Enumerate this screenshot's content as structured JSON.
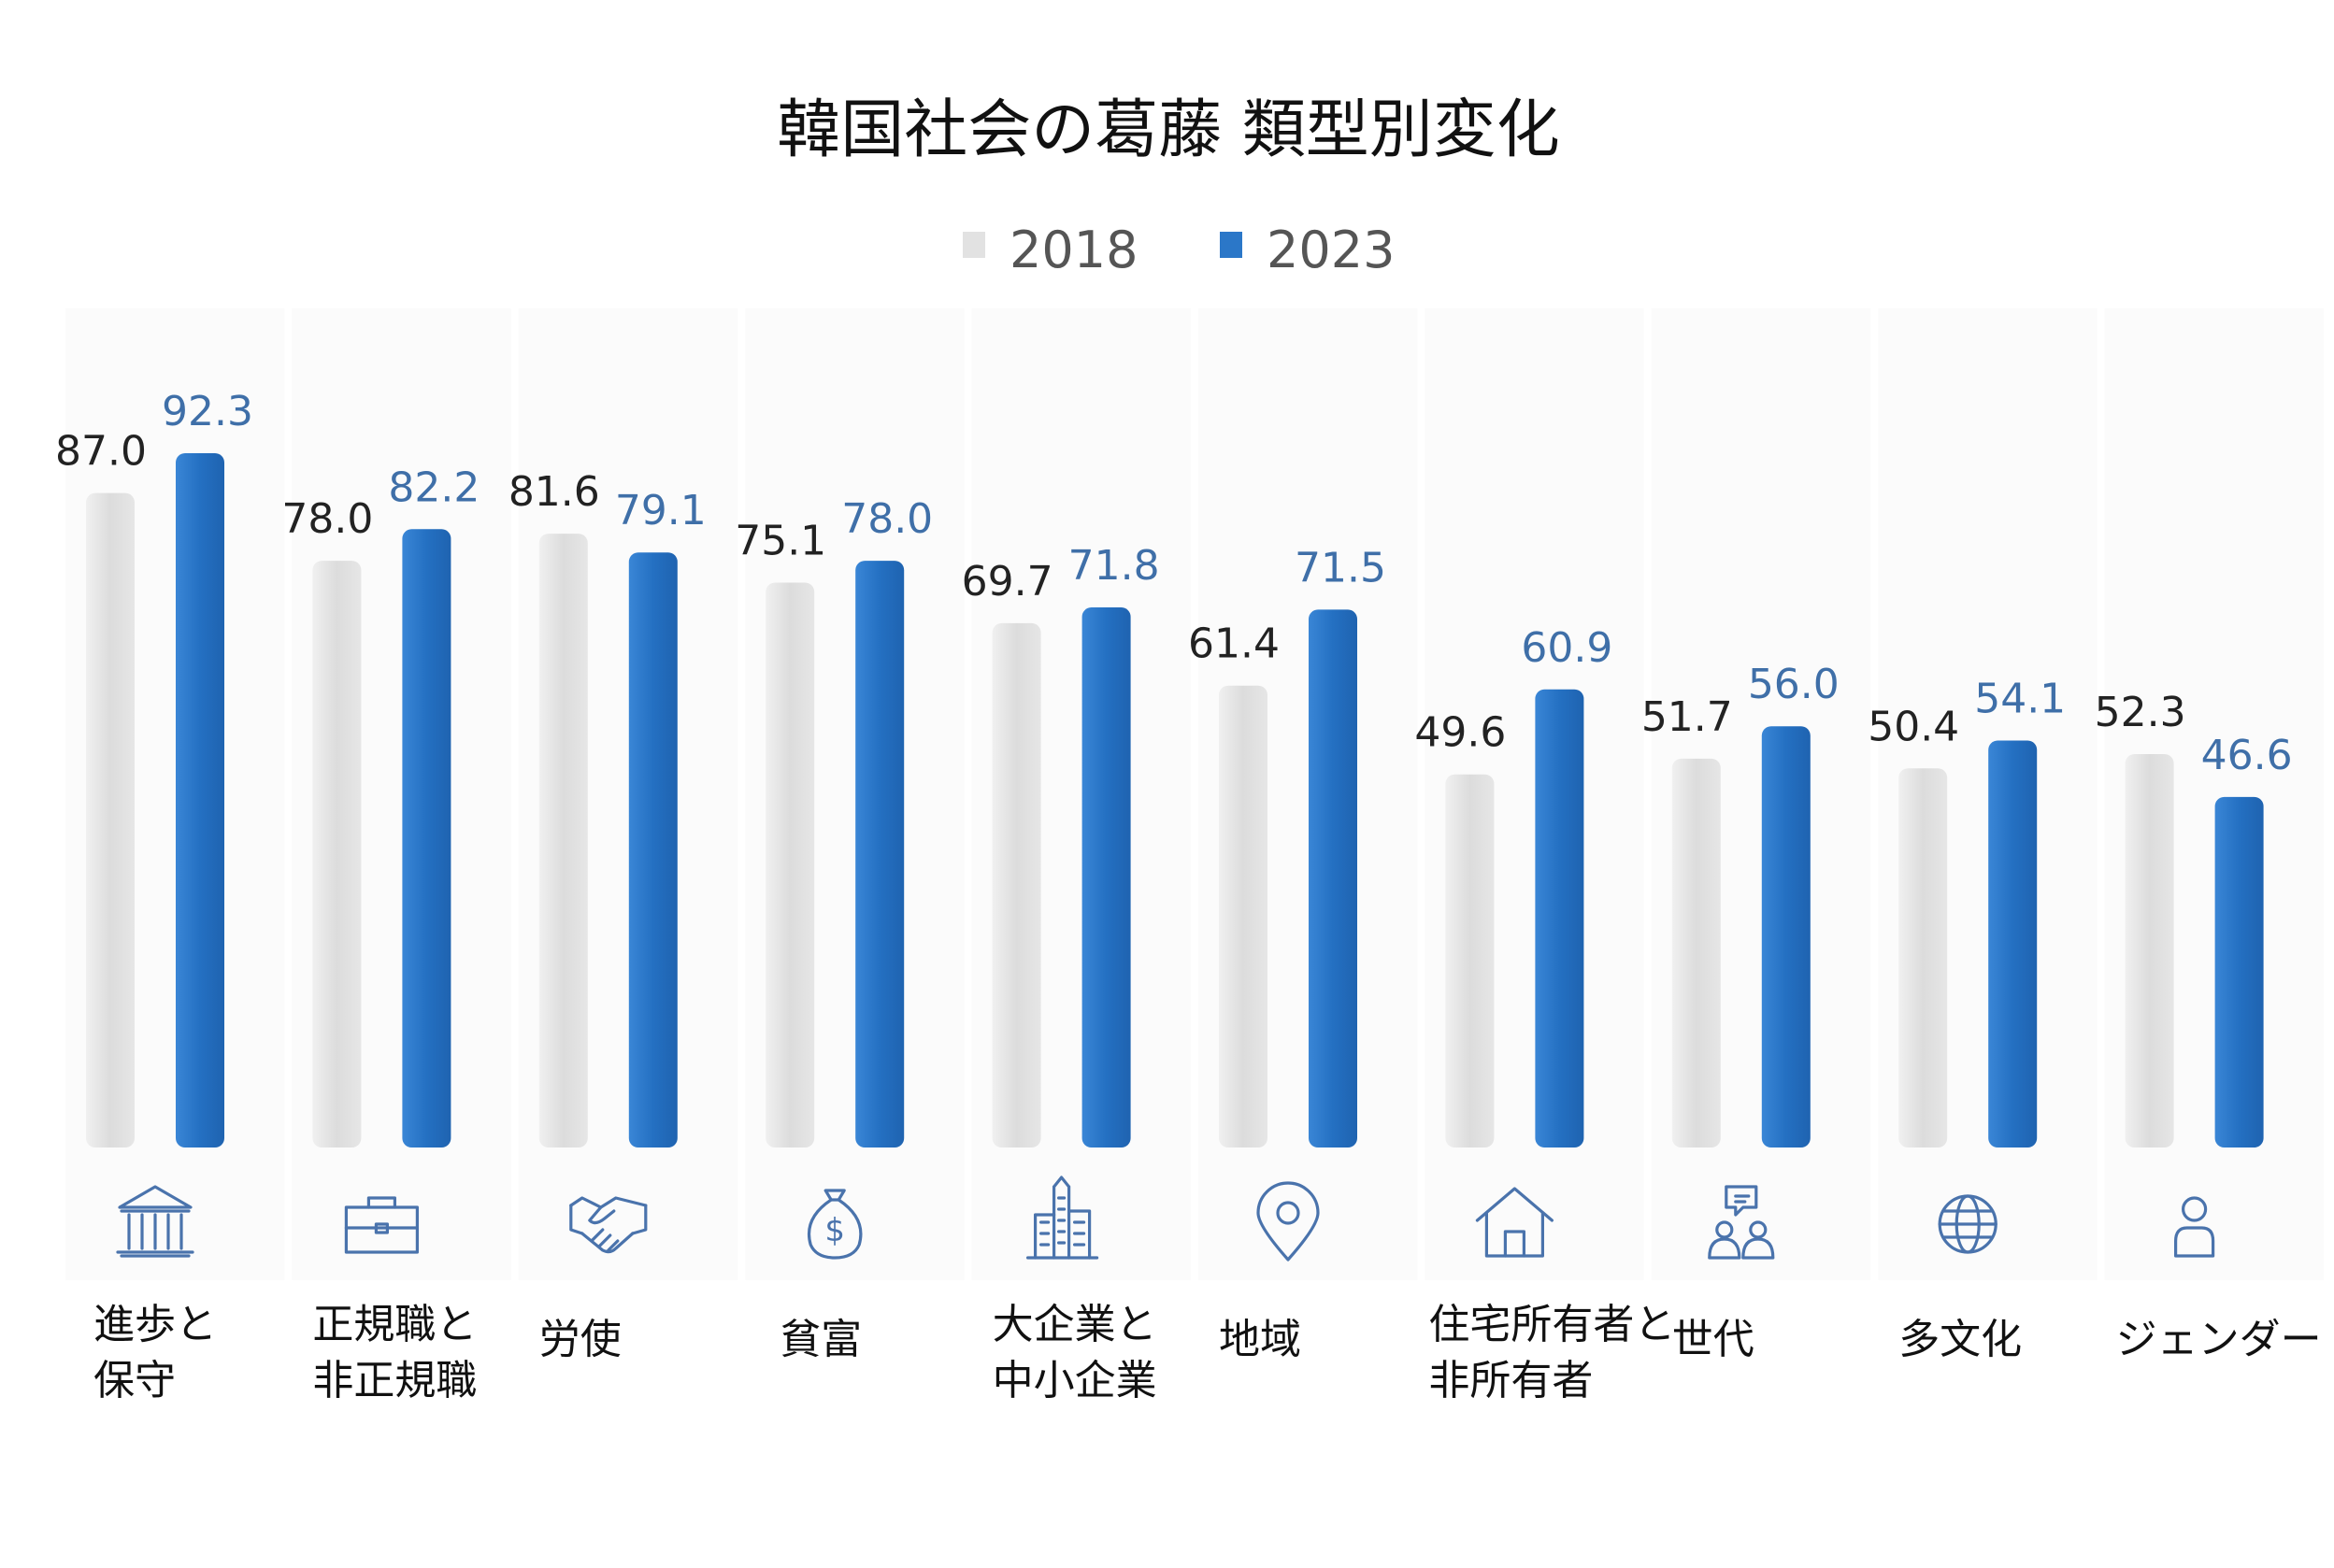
{
  "chart_data": {
    "type": "bar",
    "title": "韓国社会の葛藤 類型別変化",
    "xlabel": "",
    "ylabel": "",
    "ylim": [
      0,
      100
    ],
    "grid": false,
    "legend_position": "top-center",
    "categories": [
      [
        "進歩と",
        "保守"
      ],
      [
        "正規職と",
        "非正規職"
      ],
      [
        "労使"
      ],
      [
        "貧富"
      ],
      [
        "大企業と",
        "中小企業"
      ],
      [
        "地域"
      ],
      [
        "住宅所有者と",
        "非所有者"
      ],
      [
        "世代"
      ],
      [
        "多文化"
      ],
      [
        "ジェンダー"
      ]
    ],
    "series": [
      {
        "name": "2018",
        "color": "#e2e2e2",
        "label_color": "#222222",
        "values": [
          87.0,
          78.0,
          81.6,
          75.1,
          69.7,
          61.4,
          49.6,
          51.7,
          50.4,
          52.3
        ],
        "labels": [
          "87.0",
          "78.0",
          "81.6",
          "75.1",
          "69.7",
          "61.4",
          "49.6",
          "51.7",
          "50.4",
          "52.3"
        ]
      },
      {
        "name": "2023",
        "color": "#2b77c8",
        "label_color": "#3f6fa8",
        "values": [
          92.3,
          82.2,
          79.1,
          78.0,
          71.8,
          71.5,
          60.9,
          56.0,
          54.1,
          46.6
        ],
        "labels": [
          "92.3",
          "82.2",
          "79.1",
          "78.0",
          "71.8",
          "71.5",
          "60.9",
          "56.0",
          "54.1",
          "46.6"
        ]
      }
    ],
    "icons": [
      "bank-icon",
      "briefcase-icon",
      "handshake-icon",
      "money-bag-icon",
      "buildings-icon",
      "map-pin-icon",
      "house-icon",
      "people-chat-icon",
      "globe-icon",
      "person-icon"
    ],
    "icon_color": "#4a73ac"
  }
}
